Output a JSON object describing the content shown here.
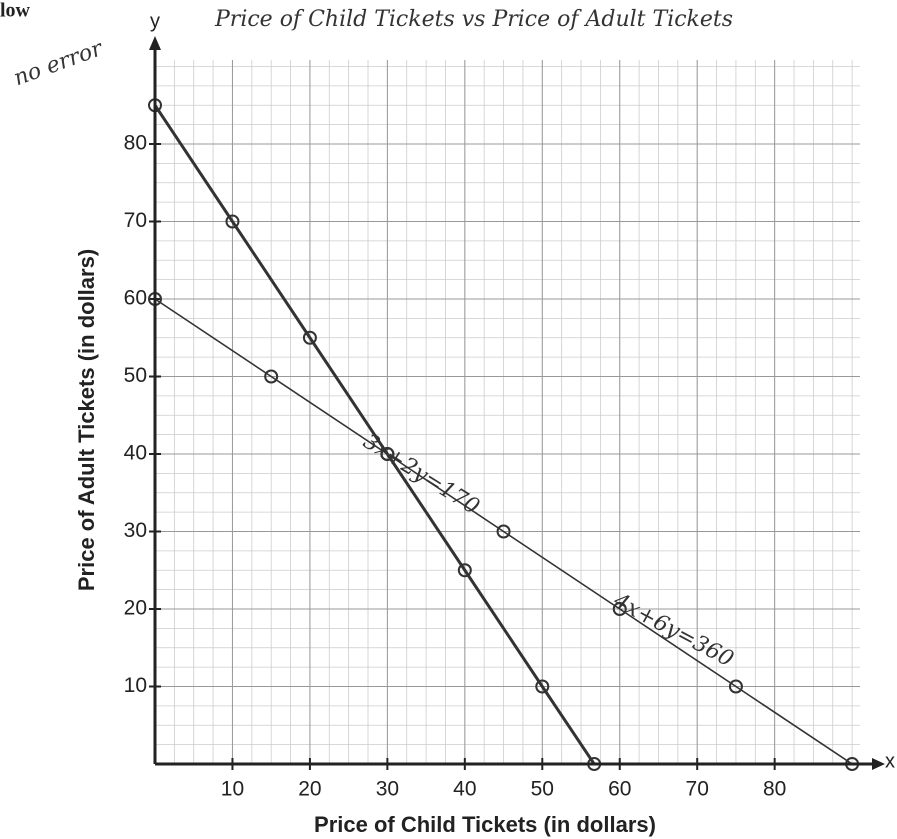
{
  "chart_data": {
    "type": "line",
    "title": "Price of Child Tickets vs Price of Adult Tickets",
    "corner_text": "low",
    "note": "no error",
    "x_axis_name": "x",
    "y_axis_name": "y",
    "xlabel": "Price of Child Tickets (in dollars)",
    "ylabel": "Price of Adult Tickets (in dollars)",
    "xlim": [
      0,
      93.6
    ],
    "ylim": [
      0,
      96
    ],
    "xticks": [
      10,
      20,
      30,
      40,
      50,
      60,
      70,
      80
    ],
    "yticks": [
      10,
      20,
      30,
      40,
      50,
      60,
      70,
      80
    ],
    "grid": true,
    "series": [
      {
        "name": "3x+2y=170",
        "color": "#333333",
        "width": 3,
        "x": [
          0,
          10,
          20,
          30,
          40,
          50,
          56.7
        ],
        "values": [
          85,
          70,
          55,
          40,
          25,
          10,
          0
        ]
      },
      {
        "name": "4x+6y=360",
        "color": "#333333",
        "width": 1.6,
        "x": [
          0,
          15,
          30,
          45,
          60,
          75,
          90
        ],
        "values": [
          60,
          50,
          40,
          30,
          20,
          10,
          0
        ]
      }
    ]
  }
}
